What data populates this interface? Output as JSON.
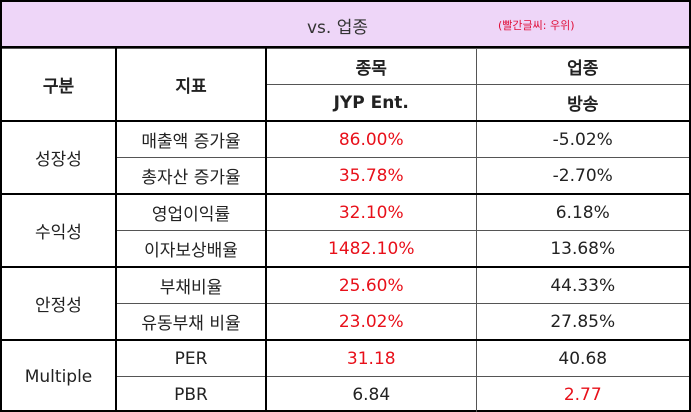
{
  "title": {
    "main": "vs. 업종",
    "note": "(빨간글씨: 우위)"
  },
  "header": {
    "category": "구분",
    "metric": "지표",
    "stock": "종목",
    "industry": "업종",
    "stock_name": "JYP Ent.",
    "industry_name": "방송"
  },
  "groups": [
    {
      "name": "성장성",
      "rows": [
        {
          "metric": "매출액 증가율",
          "stock": "86.00%",
          "industry": "-5.02%",
          "winner": "stock"
        },
        {
          "metric": "총자산 증가율",
          "stock": "35.78%",
          "industry": "-2.70%",
          "winner": "stock"
        }
      ]
    },
    {
      "name": "수익성",
      "rows": [
        {
          "metric": "영업이익률",
          "stock": "32.10%",
          "industry": "6.18%",
          "winner": "stock"
        },
        {
          "metric": "이자보상배율",
          "stock": "1482.10%",
          "industry": "13.68%",
          "winner": "stock"
        }
      ]
    },
    {
      "name": "안정성",
      "rows": [
        {
          "metric": "부채비율",
          "stock": "25.60%",
          "industry": "44.33%",
          "winner": "stock"
        },
        {
          "metric": "유동부채 비율",
          "stock": "23.02%",
          "industry": "27.85%",
          "winner": "stock"
        }
      ]
    },
    {
      "name": "Multiple",
      "rows": [
        {
          "metric": "PER",
          "stock": "31.18",
          "industry": "40.68",
          "winner": "stock"
        },
        {
          "metric": "PBR",
          "stock": "6.84",
          "industry": "2.77",
          "winner": "industry"
        }
      ]
    }
  ],
  "colors": {
    "advantage": "#e8101a",
    "title_bg": "#eed6f8"
  }
}
